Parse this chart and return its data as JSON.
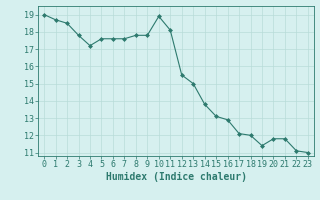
{
  "x": [
    0,
    1,
    2,
    3,
    4,
    5,
    6,
    7,
    8,
    9,
    10,
    11,
    12,
    13,
    14,
    15,
    16,
    17,
    18,
    19,
    20,
    21,
    22,
    23
  ],
  "y": [
    19.0,
    18.7,
    18.5,
    17.8,
    17.2,
    17.6,
    17.6,
    17.6,
    17.8,
    17.8,
    18.9,
    18.1,
    15.5,
    15.0,
    13.8,
    13.1,
    12.9,
    12.1,
    12.0,
    11.4,
    11.8,
    11.8,
    11.1,
    11.0
  ],
  "line_color": "#2d7a6e",
  "marker": "D",
  "marker_size": 2,
  "bg_color": "#d6f0ef",
  "grid_color": "#b8dcd9",
  "xlabel": "Humidex (Indice chaleur)",
  "ylim": [
    10.8,
    19.5
  ],
  "xlim": [
    -0.5,
    23.5
  ],
  "yticks": [
    11,
    12,
    13,
    14,
    15,
    16,
    17,
    18,
    19
  ],
  "xticks": [
    0,
    1,
    2,
    3,
    4,
    5,
    6,
    7,
    8,
    9,
    10,
    11,
    12,
    13,
    14,
    15,
    16,
    17,
    18,
    19,
    20,
    21,
    22,
    23
  ],
  "tick_color": "#2d7a6e",
  "label_color": "#2d7a6e",
  "font_size_label": 7,
  "font_size_tick": 6
}
